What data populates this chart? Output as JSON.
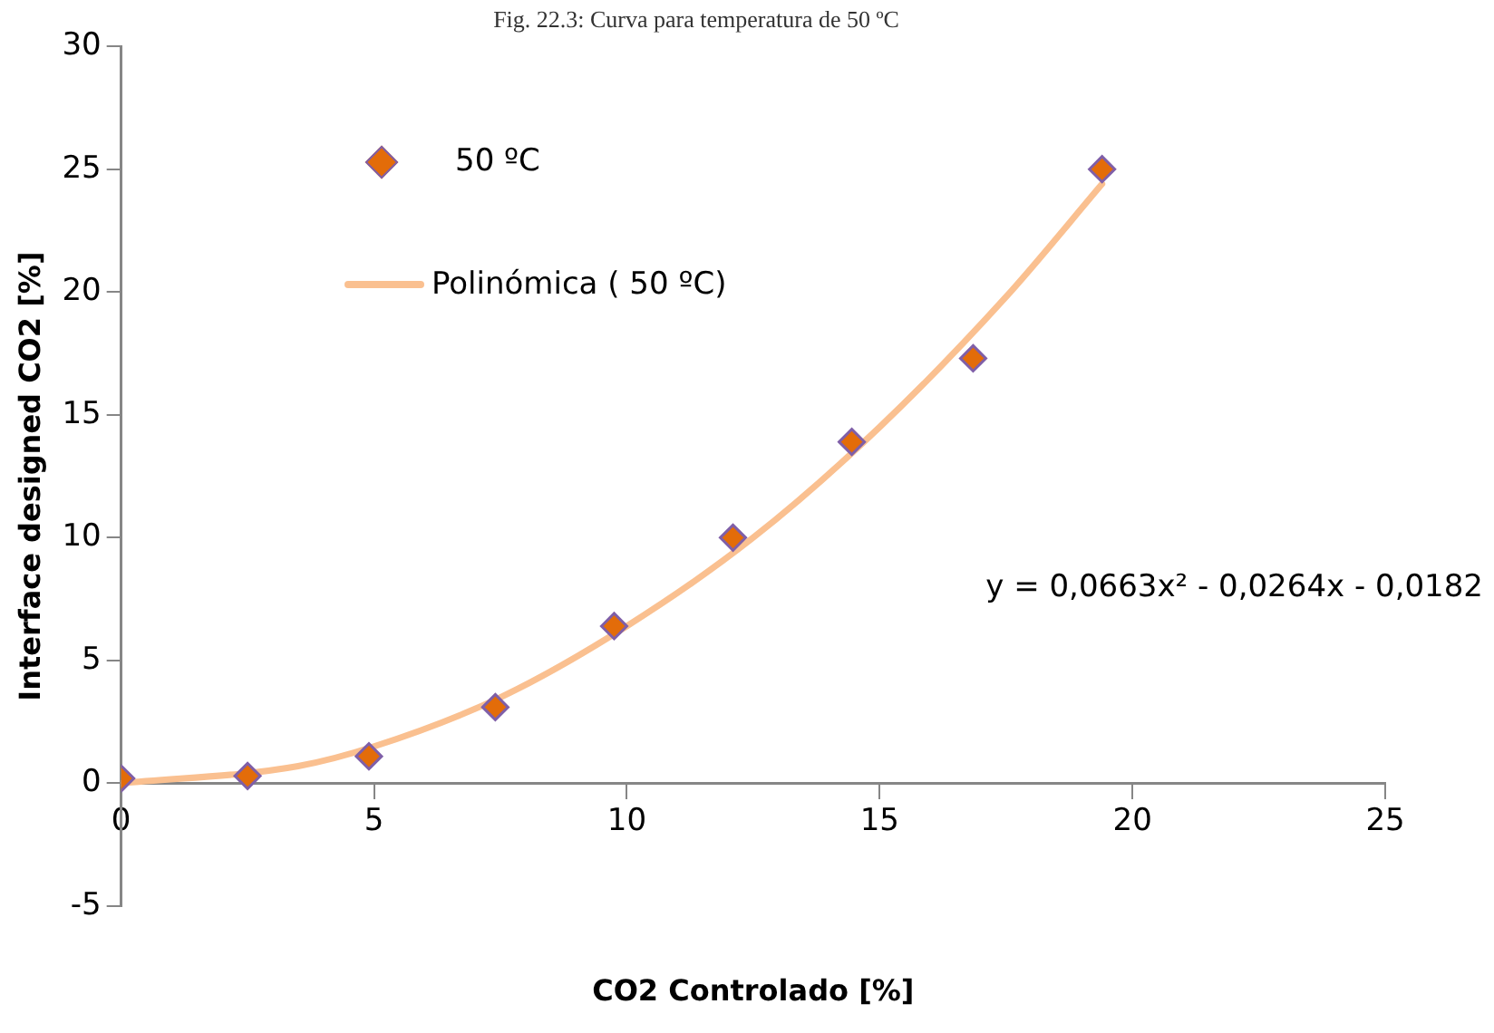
{
  "chart_data": {
    "type": "scatter",
    "title": "Fig. 22.3: Curva para temperatura de 50 ºC",
    "xlabel": "CO2 Controlado [%]",
    "ylabel": "Interface designed CO2 [%]",
    "xlim": [
      0,
      25
    ],
    "xticks": [
      0,
      5,
      10,
      15,
      20,
      25
    ],
    "ylim": [
      -5,
      30
    ],
    "yticks": [
      -5,
      0,
      5,
      10,
      15,
      20,
      25,
      30
    ],
    "grid": false,
    "legend": "top left",
    "series": [
      {
        "name": "50 ºC",
        "type": "scatter",
        "marker": "diamond",
        "color": "#e36c09",
        "x": [
          0,
          2.5,
          4.9,
          7.4,
          9.75,
          12.1,
          14.45,
          16.85,
          19.4
        ],
        "values": [
          0.2,
          0.3,
          1.1,
          3.1,
          6.4,
          10,
          13.9,
          17.3,
          25
        ]
      },
      {
        "name": "Polinómica ( 50 ºC)",
        "type": "line",
        "marker": "none",
        "color": "#fac090",
        "x": [
          0,
          3.5,
          5,
          7.5,
          10,
          12.5,
          15,
          17.5,
          19.4
        ],
        "values": [
          0,
          0.7,
          1.5,
          3.5,
          6.4,
          10,
          14.5,
          19.8,
          24.4
        ]
      }
    ],
    "annotations": [
      "y = 0,0663x² - 0,0264x - 0,0182"
    ]
  }
}
